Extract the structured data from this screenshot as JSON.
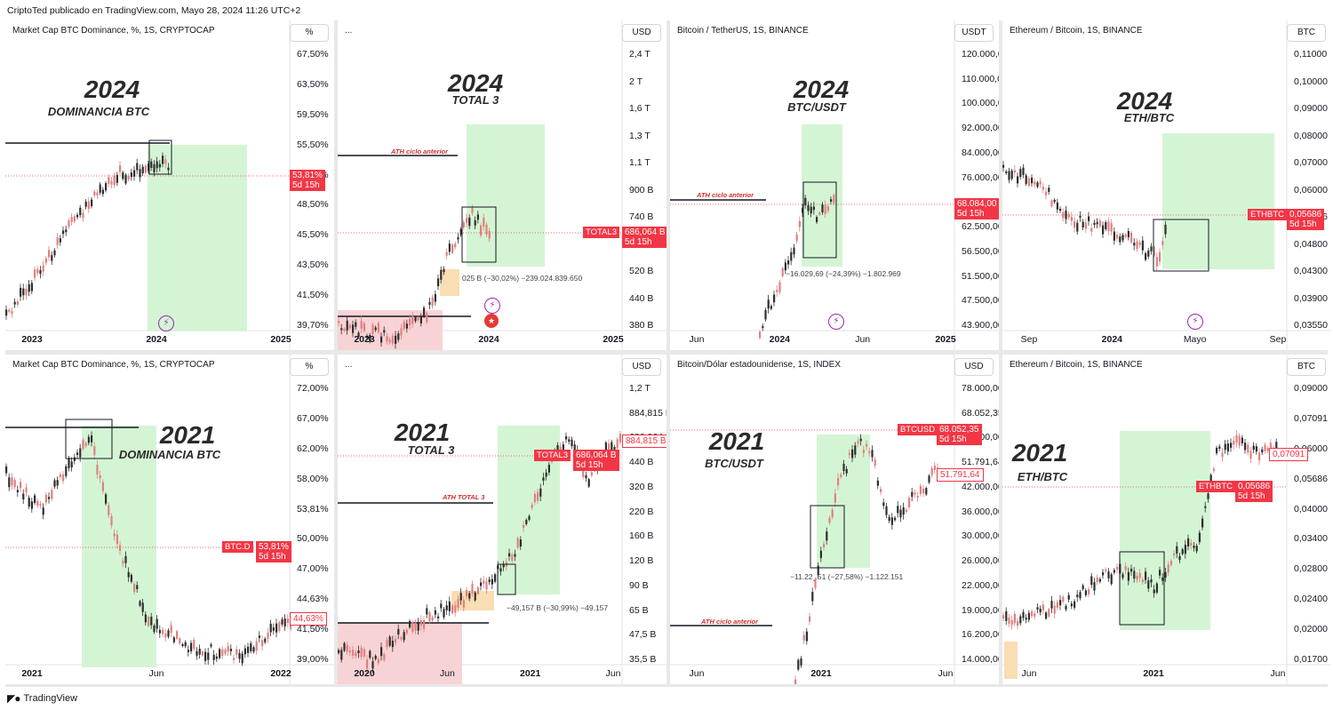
{
  "header": {
    "attribution": "CriptoTed publicado en TradingView.com, Mayo 28, 2024 11:26 UTC+2"
  },
  "footer": {
    "brand": "TradingView",
    "logo": "tradingview-logo"
  },
  "colors": {
    "up": "#2e2e2e",
    "down": "#e08080",
    "green_zone": "#d4f5d4",
    "red_zone": "#f8d3d5",
    "orange_zone": "#f9ddb3",
    "tag": "#f23645"
  },
  "panels": [
    {
      "title": "Market Cap BTC Dominance, %, 1S, CRYPTOCAP",
      "unit": "%",
      "year": "2024",
      "subtitle": "DOMINANCIA BTC",
      "yticks": [
        "67,50%",
        "63,50%",
        "59,50%",
        "55,50%",
        "51,50%",
        "48,50%",
        "45,50%",
        "43,50%",
        "41,50%",
        "39,70%"
      ],
      "xticks": [
        "2023",
        "2024",
        "2025"
      ],
      "price_tag": {
        "value": "53,81%",
        "time": "5d 15h"
      },
      "icons": [
        "lightning-icon"
      ],
      "chart_data": {
        "type": "candlestick",
        "title": "Market Cap BTC Dominance",
        "trend": "rising",
        "x": [
          "2023",
          "2024",
          "2025"
        ],
        "close_approx": [
          40.5,
          49.0,
          53.81
        ],
        "ylim": [
          39.0,
          68.0
        ],
        "zone": "green-projection"
      }
    },
    {
      "title": "...",
      "unit": "USD",
      "year": "2024",
      "subtitle": "TOTAL 3",
      "yticks": [
        "2,4 T",
        "2 T",
        "1,6 T",
        "1,3 T",
        "1,1 T",
        "900 B",
        "740 B",
        "620 B",
        "520 B",
        "440 B",
        "380 B"
      ],
      "xticks": [
        "2023",
        "2024",
        "2025"
      ],
      "symbol": "TOTAL3",
      "price_tag": {
        "value": "686,064 B",
        "time": "5d 15h"
      },
      "annotation": "ATH ciclo anterior",
      "measure": "025 B (−30,02%) −239.024.839.650",
      "icons": [
        "lightning-icon",
        "us-flag-icon"
      ],
      "chart_data": {
        "type": "candlestick",
        "title": "TOTAL 3",
        "trend": "rising",
        "close_approx": [
          380,
          420,
          686.064
        ],
        "ylim": [
          360,
          2400
        ],
        "zone": "green-projection"
      }
    },
    {
      "title": "Bitcoin / TetherUS, 1S, BINANCE",
      "unit": "USDT",
      "year": "2024",
      "subtitle": "BTC/USDT",
      "yticks": [
        "120.000,00",
        "110.000,00",
        "100.000,00",
        "92.000,00",
        "84.000,00",
        "76.000,00",
        "68.000,00",
        "62.500,00",
        "56.500,00",
        "51.500,00",
        "47.500,00",
        "43.900,00"
      ],
      "xticks": [
        "Jun",
        "2024",
        "Jun",
        "2025"
      ],
      "price_tag": {
        "value": "68.084,00",
        "time": "5d 15h"
      },
      "annotation": "ATH ciclo anterior",
      "measure": "−16.029,69 (−24,39%) −1.802.969",
      "icons": [
        "lightning-icon"
      ],
      "chart_data": {
        "type": "candlestick",
        "title": "BTC/USDT",
        "trend": "rising",
        "close_approx": [
          43000,
          62000,
          68084
        ],
        "ylim": [
          42000,
          122000
        ],
        "zone": "green-projection"
      }
    },
    {
      "title": "Ethereum / Bitcoin, 1S, BINANCE",
      "unit": "BTC",
      "year": "2024",
      "subtitle": "ETH/BTC",
      "yticks": [
        "0,11000",
        "0,10000",
        "0,09000",
        "0,08000",
        "0,07000",
        "0,06000",
        "0,05686",
        "0,04800",
        "0,04300",
        "0,03900",
        "0,03550"
      ],
      "xticks": [
        "Sep",
        "2024",
        "Mayo",
        "Sep"
      ],
      "symbol": "ETHBTC",
      "price_tag": {
        "value": "0,05686",
        "time": "5d 15h"
      },
      "icons": [
        "lightning-icon"
      ],
      "chart_data": {
        "type": "candlestick",
        "title": "ETH/BTC",
        "trend": "falling",
        "close_approx": [
          0.068,
          0.055,
          0.05686
        ],
        "ylim": [
          0.034,
          0.115
        ],
        "zone": "green-projection"
      }
    },
    {
      "title": "Market Cap BTC Dominance, %, 1S, CRYPTOCAP",
      "unit": "%",
      "year": "2021",
      "subtitle": "DOMINANCIA BTC",
      "yticks": [
        "72,00%",
        "67,00%",
        "62,00%",
        "58,00%",
        "53,81%",
        "50,00%",
        "47,00%",
        "44,63%",
        "41,50%",
        "39,00%"
      ],
      "xticks": [
        "2021",
        "Jun",
        "2022"
      ],
      "symbol": "BTC.D",
      "price_tag": {
        "value": "53,81%",
        "time": "5d 15h"
      },
      "price_tag2": {
        "value": "44,63%"
      },
      "chart_data": {
        "type": "candlestick",
        "title": "DOMINANCIA BTC 2021",
        "trend": "falling",
        "close_approx": [
          62,
          70,
          44.63
        ],
        "ylim": [
          37,
          75
        ],
        "zone": "green-projection"
      }
    },
    {
      "title": "...",
      "unit": "USD",
      "year": "2021",
      "subtitle": "TOTAL 3",
      "yticks": [
        "1,2 T",
        "884,815 B",
        "686,064 B",
        "440 B",
        "320 B",
        "220 B",
        "160 B",
        "120 B",
        "90 B",
        "65 B",
        "47,5 B",
        "35,5 B"
      ],
      "xticks": [
        "2020",
        "Jun",
        "2021",
        "Jun"
      ],
      "symbol": "TOTAL3",
      "price_tag": {
        "value": "686,064 B",
        "time": "5d 15h"
      },
      "price_tag2": {
        "value": "884,815 B"
      },
      "annotation": "ATH TOTAL 3",
      "measure": "−49,157 B (−30,99%) −49.157",
      "chart_data": {
        "type": "candlestick",
        "title": "TOTAL 3 2021",
        "trend": "rising",
        "close_approx": [
          40,
          90,
          884.815
        ],
        "ylim": [
          33,
          1300
        ],
        "zone": "green-projection"
      }
    },
    {
      "title": "Bitcoin/Dólar estadounidense, 1S, INDEX",
      "unit": "USD",
      "year": "2021",
      "subtitle": "BTC/USDT",
      "yticks": [
        "78.000,00",
        "68.052,35",
        "58.000,00",
        "51.791,64",
        "42.000,00",
        "36.000,00",
        "30.000,00",
        "26.000,00",
        "22.000,00",
        "19.000,00",
        "16.200,00",
        "14.000,00"
      ],
      "xticks": [
        "Jun",
        "2021",
        "Jun"
      ],
      "symbol": "BTCUSD",
      "price_tag": {
        "value": "68.052,35",
        "time": "5d 15h"
      },
      "price_tag2": {
        "value": "51.791,64"
      },
      "annotation": "ATH ciclo anterior",
      "measure": "−11.22‸.51 (−27,58%) −1.122.151",
      "chart_data": {
        "type": "candlestick",
        "title": "BTC/USDT 2021",
        "trend": "rising",
        "close_approx": [
          14000,
          58000,
          51791.64
        ],
        "ylim": [
          13500,
          80000
        ],
        "zone": "green-projection"
      }
    },
    {
      "title": "Ethereum / Bitcoin, 1S, BINANCE",
      "unit": "BTC",
      "year": "2021",
      "subtitle": "ETH/BTC",
      "yticks": [
        "0,09000",
        "0,07091",
        "0,06000",
        "0,05686",
        "0,04000",
        "0,03400",
        "0,02800",
        "0,02400",
        "0,02000",
        "0,01700"
      ],
      "xticks": [
        "Jun",
        "2021",
        "Jun"
      ],
      "symbol": "ETHBTC",
      "price_tag": {
        "value": "0,05686",
        "time": "5d 15h"
      },
      "price_tag2": {
        "value": "0,07091"
      },
      "chart_data": {
        "type": "candlestick",
        "title": "ETH/BTC 2021",
        "trend": "rising",
        "close_approx": [
          0.022,
          0.034,
          0.07091
        ],
        "ylim": [
          0.016,
          0.092
        ],
        "zone": "green-projection"
      }
    }
  ]
}
